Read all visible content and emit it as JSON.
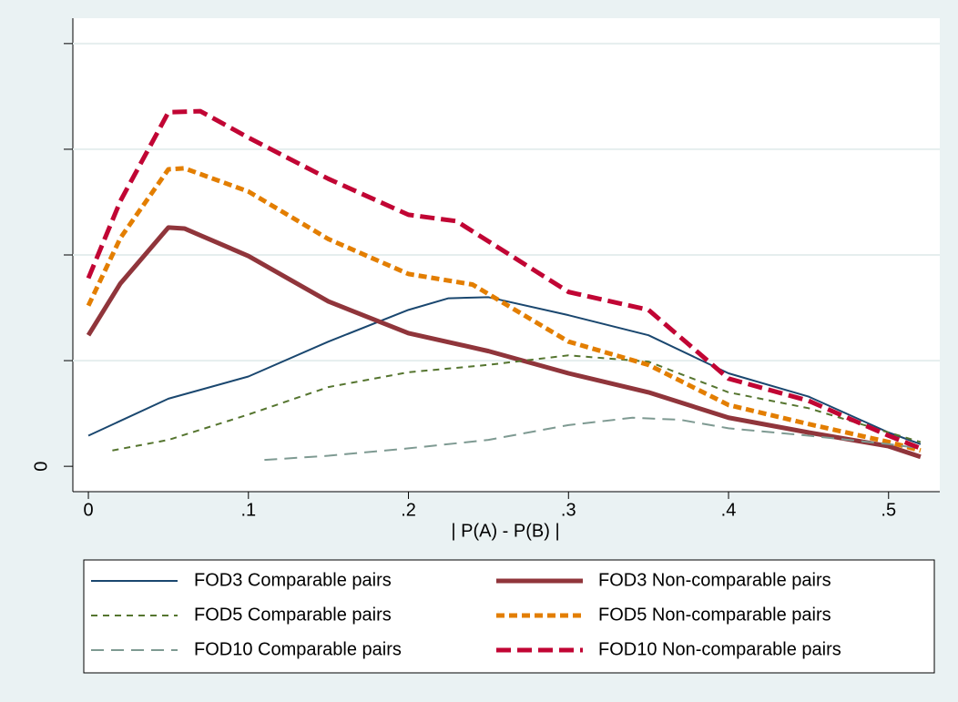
{
  "chart_data": {
    "type": "line",
    "xlabel": "| P(A) - P(B) |",
    "xlim": [
      -0.0097,
      0.532
    ],
    "xticks": [
      0,
      {
        "value": 0.1,
        "label": ".1"
      },
      {
        "value": 0.2,
        "label": ".2"
      },
      {
        "value": 0.3,
        "label": ".3"
      },
      {
        "value": 0.4,
        "label": ".4"
      },
      {
        "value": 0.5,
        "label": ".5"
      }
    ],
    "ylim": [
      -0.24,
      4.24
    ],
    "yticks": [
      0
    ],
    "yticks_unlabeled": [
      1,
      2,
      3,
      4
    ],
    "grid": true,
    "legend": "bottom",
    "series": [
      {
        "name": "FOD3 Comparable pairs",
        "color": "#1a476f",
        "width": 2,
        "dash": "none",
        "x": [
          0,
          0.05,
          0.1,
          0.15,
          0.2,
          0.225,
          0.25,
          0.3,
          0.35,
          0.4,
          0.45,
          0.5,
          0.52
        ],
        "values": [
          0.29,
          0.64,
          0.85,
          1.18,
          1.48,
          1.59,
          1.6,
          1.43,
          1.24,
          0.88,
          0.66,
          0.32,
          0.21
        ]
      },
      {
        "name": "FOD3 Non-comparable pairs",
        "color": "#90353b",
        "width": 5,
        "dash": "none",
        "x": [
          0,
          0.02,
          0.05,
          0.06,
          0.1,
          0.15,
          0.2,
          0.25,
          0.3,
          0.35,
          0.4,
          0.45,
          0.5,
          0.52
        ],
        "values": [
          1.24,
          1.73,
          2.26,
          2.25,
          1.99,
          1.56,
          1.26,
          1.09,
          0.88,
          0.7,
          0.46,
          0.32,
          0.19,
          0.09
        ]
      },
      {
        "name": "FOD5 Comparable pairs",
        "color": "#55752f",
        "width": 2,
        "dash": "7,6",
        "x": [
          0.015,
          0.05,
          0.1,
          0.15,
          0.2,
          0.25,
          0.3,
          0.35,
          0.4,
          0.45,
          0.5,
          0.52
        ],
        "values": [
          0.15,
          0.25,
          0.49,
          0.75,
          0.89,
          0.96,
          1.05,
          0.99,
          0.7,
          0.55,
          0.32,
          0.23
        ]
      },
      {
        "name": "FOD5 Non-comparable pairs",
        "color": "#e37e00",
        "width": 5,
        "dash": "9,5",
        "x": [
          0,
          0.02,
          0.05,
          0.06,
          0.1,
          0.15,
          0.2,
          0.24,
          0.3,
          0.35,
          0.4,
          0.45,
          0.5,
          0.52
        ],
        "values": [
          1.52,
          2.16,
          2.81,
          2.82,
          2.6,
          2.15,
          1.82,
          1.72,
          1.18,
          0.96,
          0.58,
          0.4,
          0.23,
          0.15
        ]
      },
      {
        "name": "FOD10 Comparable pairs",
        "color": "#7e9a92",
        "width": 2,
        "dash": "14,8",
        "x": [
          0.11,
          0.15,
          0.2,
          0.25,
          0.3,
          0.34,
          0.37,
          0.4,
          0.45,
          0.5,
          0.52
        ],
        "values": [
          0.06,
          0.1,
          0.17,
          0.25,
          0.39,
          0.46,
          0.44,
          0.36,
          0.29,
          0.21,
          0.17
        ]
      },
      {
        "name": "FOD10 Non-comparable pairs",
        "color": "#c10534",
        "width": 5,
        "dash": "16,7",
        "x": [
          0,
          0.02,
          0.05,
          0.07,
          0.1,
          0.15,
          0.2,
          0.23,
          0.3,
          0.35,
          0.4,
          0.45,
          0.5,
          0.52
        ],
        "values": [
          1.78,
          2.51,
          3.35,
          3.36,
          3.11,
          2.72,
          2.38,
          2.32,
          1.65,
          1.48,
          0.83,
          0.62,
          0.29,
          0.17
        ]
      }
    ]
  }
}
